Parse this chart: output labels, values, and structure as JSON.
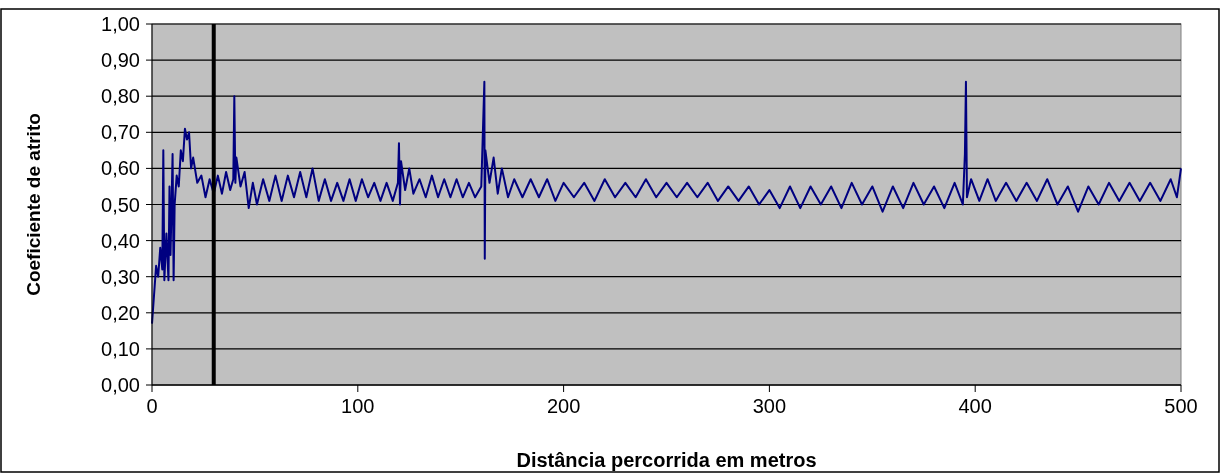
{
  "chart_data": {
    "type": "line",
    "xlabel": "Distância percorrida em metros",
    "ylabel": "Coeficiente de atrito",
    "xlim": [
      0,
      500
    ],
    "xticks": [
      0,
      100,
      200,
      300,
      400,
      500
    ],
    "ylim": [
      0,
      1
    ],
    "yticks": [
      {
        "value": 0,
        "label": "0,00"
      },
      {
        "value": 0.1,
        "label": "0,10"
      },
      {
        "value": 0.2,
        "label": "0,20"
      },
      {
        "value": 0.3,
        "label": "0,30"
      },
      {
        "value": 0.4,
        "label": "0,40"
      },
      {
        "value": 0.5,
        "label": "0,50"
      },
      {
        "value": 0.6,
        "label": "0,60"
      },
      {
        "value": 0.7,
        "label": "0,70"
      },
      {
        "value": 0.8,
        "label": "0,80"
      },
      {
        "value": 0.9,
        "label": "0,90"
      },
      {
        "value": 1,
        "label": "1,00"
      }
    ],
    "grid": "y",
    "line_style": "solid",
    "marker": "none",
    "ref_lines": [
      {
        "axis": "x",
        "value": 30,
        "label": null,
        "color": "#000000"
      }
    ],
    "series": [
      {
        "color": "#000080",
        "x": [
          0,
          1,
          2,
          3,
          4,
          5,
          5.5,
          6,
          7,
          8,
          8.5,
          9,
          10,
          10.5,
          11,
          12,
          13,
          14,
          15,
          16,
          17,
          18,
          19,
          20,
          22,
          24,
          26,
          28,
          30,
          32,
          34,
          36,
          38,
          39.5,
          40,
          40.5,
          41,
          43,
          45,
          47,
          49,
          51,
          54,
          57,
          60,
          63,
          66,
          69,
          72,
          75,
          78,
          81,
          84,
          87,
          90,
          93,
          96,
          99,
          102,
          105,
          108,
          111,
          114,
          117,
          119.5,
          120,
          120.5,
          121,
          123,
          125,
          127,
          130,
          133,
          136,
          139,
          142,
          145,
          148,
          151,
          154,
          157,
          160,
          161.5,
          161.7,
          162,
          164,
          166,
          168,
          170,
          173,
          176,
          180,
          184,
          188,
          192,
          196,
          200,
          205,
          210,
          215,
          220,
          225,
          230,
          235,
          240,
          245,
          250,
          255,
          260,
          265,
          270,
          275,
          280,
          285,
          290,
          295,
          300,
          305,
          310,
          315,
          320,
          325,
          330,
          335,
          340,
          345,
          350,
          355,
          360,
          365,
          370,
          375,
          380,
          385,
          390,
          394,
          395,
          395.5,
          396,
          398,
          402,
          406,
          410,
          415,
          420,
          425,
          430,
          435,
          440,
          445,
          450,
          455,
          460,
          465,
          470,
          475,
          480,
          485,
          490,
          495,
          498,
          500
        ],
        "values": [
          0.17,
          0.25,
          0.33,
          0.3,
          0.38,
          0.32,
          0.65,
          0.29,
          0.42,
          0.29,
          0.55,
          0.36,
          0.64,
          0.29,
          0.5,
          0.58,
          0.55,
          0.65,
          0.62,
          0.71,
          0.68,
          0.7,
          0.6,
          0.63,
          0.56,
          0.58,
          0.52,
          0.57,
          0.53,
          0.58,
          0.53,
          0.59,
          0.54,
          0.57,
          0.8,
          0.56,
          0.63,
          0.55,
          0.59,
          0.49,
          0.56,
          0.5,
          0.57,
          0.51,
          0.58,
          0.51,
          0.58,
          0.52,
          0.59,
          0.52,
          0.6,
          0.51,
          0.57,
          0.51,
          0.56,
          0.51,
          0.57,
          0.51,
          0.57,
          0.52,
          0.56,
          0.51,
          0.56,
          0.51,
          0.56,
          0.67,
          0.5,
          0.62,
          0.54,
          0.6,
          0.53,
          0.57,
          0.52,
          0.58,
          0.52,
          0.57,
          0.52,
          0.57,
          0.52,
          0.56,
          0.52,
          0.55,
          0.84,
          0.35,
          0.65,
          0.56,
          0.63,
          0.53,
          0.6,
          0.52,
          0.57,
          0.52,
          0.57,
          0.52,
          0.57,
          0.51,
          0.56,
          0.52,
          0.56,
          0.51,
          0.57,
          0.52,
          0.56,
          0.52,
          0.57,
          0.52,
          0.56,
          0.52,
          0.56,
          0.52,
          0.56,
          0.51,
          0.55,
          0.51,
          0.55,
          0.5,
          0.54,
          0.49,
          0.55,
          0.49,
          0.55,
          0.5,
          0.55,
          0.49,
          0.56,
          0.5,
          0.55,
          0.48,
          0.55,
          0.49,
          0.56,
          0.5,
          0.55,
          0.49,
          0.56,
          0.5,
          0.64,
          0.84,
          0.52,
          0.57,
          0.51,
          0.57,
          0.51,
          0.56,
          0.51,
          0.56,
          0.51,
          0.57,
          0.5,
          0.55,
          0.48,
          0.55,
          0.5,
          0.56,
          0.51,
          0.56,
          0.51,
          0.56,
          0.51,
          0.57,
          0.52,
          0.6
        ]
      }
    ]
  }
}
